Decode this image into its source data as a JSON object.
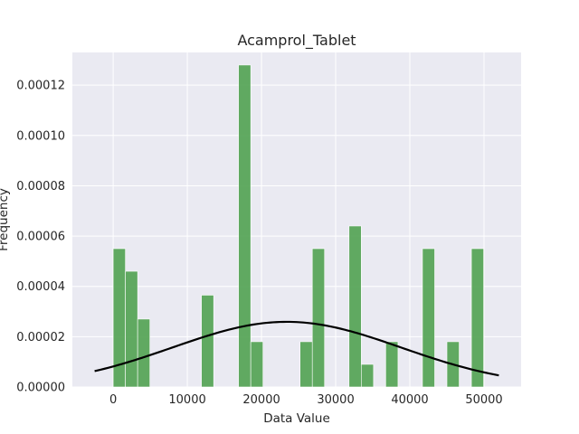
{
  "chart_data": {
    "type": "bar",
    "title": "Acamprol_Tablet",
    "xlabel": "Data Value",
    "ylabel": "Frequency",
    "xlim": [
      -5500,
      55000
    ],
    "ylim": [
      0,
      0.000133
    ],
    "x_ticks": [
      0,
      10000,
      20000,
      30000,
      40000,
      50000
    ],
    "y_ticks": [
      0,
      2e-05,
      4e-05,
      6e-05,
      8e-05,
      0.0001,
      0.00012
    ],
    "x_tick_labels": [
      "0",
      "10000",
      "20000",
      "30000",
      "40000",
      "50000"
    ],
    "y_tick_labels": [
      "0.00000",
      "0.00002",
      "0.00004",
      "0.00006",
      "0.00008",
      "0.00010",
      "0.00012"
    ],
    "grid": true,
    "background": "#eaeaf2",
    "bar_color": "#4c9f4c",
    "curve_color": "#000000",
    "bars": [
      {
        "x0": 0,
        "x1": 1650,
        "value": 5.5e-05
      },
      {
        "x0": 1650,
        "x1": 3300,
        "value": 4.6e-05
      },
      {
        "x0": 3300,
        "x1": 4950,
        "value": 2.7e-05
      },
      {
        "x0": 11900,
        "x1": 13550,
        "value": 3.65e-05
      },
      {
        "x0": 16900,
        "x1": 18550,
        "value": 0.000128
      },
      {
        "x0": 18550,
        "x1": 20200,
        "value": 1.8e-05
      },
      {
        "x0": 25200,
        "x1": 26850,
        "value": 1.8e-05
      },
      {
        "x0": 26850,
        "x1": 28500,
        "value": 5.5e-05
      },
      {
        "x0": 31800,
        "x1": 33450,
        "value": 6.4e-05
      },
      {
        "x0": 33450,
        "x1": 35100,
        "value": 9e-06
      },
      {
        "x0": 36750,
        "x1": 38400,
        "value": 1.8e-05
      },
      {
        "x0": 41700,
        "x1": 43350,
        "value": 5.5e-05
      },
      {
        "x0": 45000,
        "x1": 46650,
        "value": 1.8e-05
      },
      {
        "x0": 48300,
        "x1": 49950,
        "value": 5.5e-05
      }
    ],
    "normal_curve": {
      "mean": 23400,
      "std": 15400,
      "x_range": [
        -2500,
        52000
      ]
    }
  }
}
